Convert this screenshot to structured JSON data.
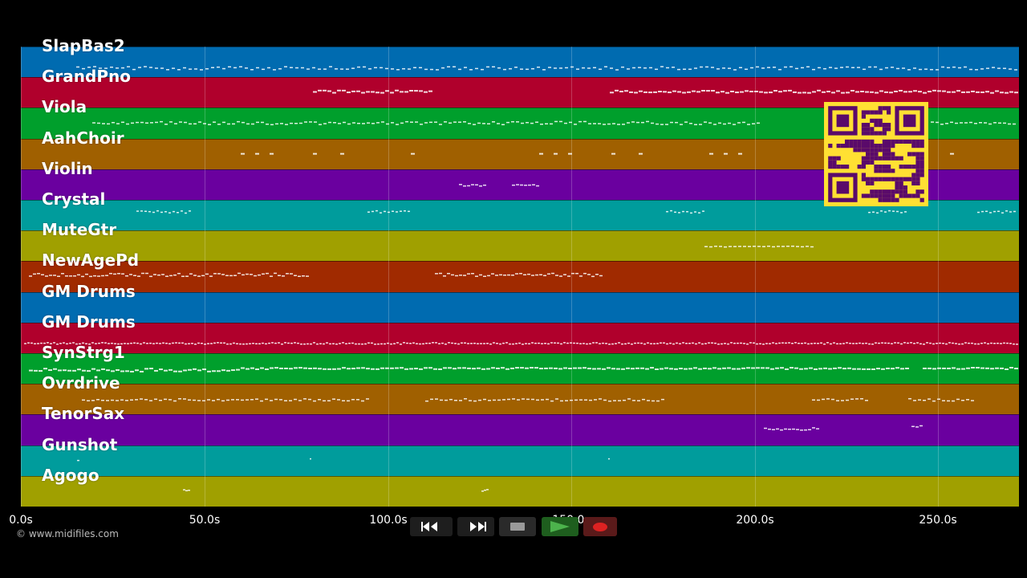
{
  "tracks": [
    {
      "name": "SlapBas2",
      "color": "#006bb0"
    },
    {
      "name": "GrandPno",
      "color": "#b0002c"
    },
    {
      "name": "Viola",
      "color": "#009f2c"
    },
    {
      "name": "AahChoir",
      "color": "#a06000"
    },
    {
      "name": "Violin",
      "color": "#6a009f"
    },
    {
      "name": "Crystal",
      "color": "#009c9c"
    },
    {
      "name": "MuteGtr",
      "color": "#a0a000"
    },
    {
      "name": "NewAgePd",
      "color": "#a02a00"
    },
    {
      "name": "GM Drums",
      "color": "#006bb0"
    },
    {
      "name": "GM Drums",
      "color": "#b0002c"
    },
    {
      "name": "SynStrg1",
      "color": "#009f2c"
    },
    {
      "name": "Ovrdrive",
      "color": "#a06000"
    },
    {
      "name": "TenorSax",
      "color": "#6a009f"
    },
    {
      "name": "Gunshot",
      "color": "#009c9c"
    },
    {
      "name": "Agogo",
      "color": "#a0a000"
    }
  ],
  "timeline": {
    "ticks": [
      "0.0s",
      "50.0s",
      "100.0s",
      "150.0s",
      "200.0s",
      "250.0s"
    ]
  },
  "transport": {
    "rewind_icon": "rewind-icon",
    "forward_icon": "fast-forward-icon",
    "stop_icon": "stop-icon",
    "play_icon": "play-icon",
    "record_icon": "record-icon"
  },
  "qr_code": {
    "color_bg": "#ffe033",
    "color_fg": "#5a0a6a"
  },
  "copyright": "© www.midifiles.com"
}
